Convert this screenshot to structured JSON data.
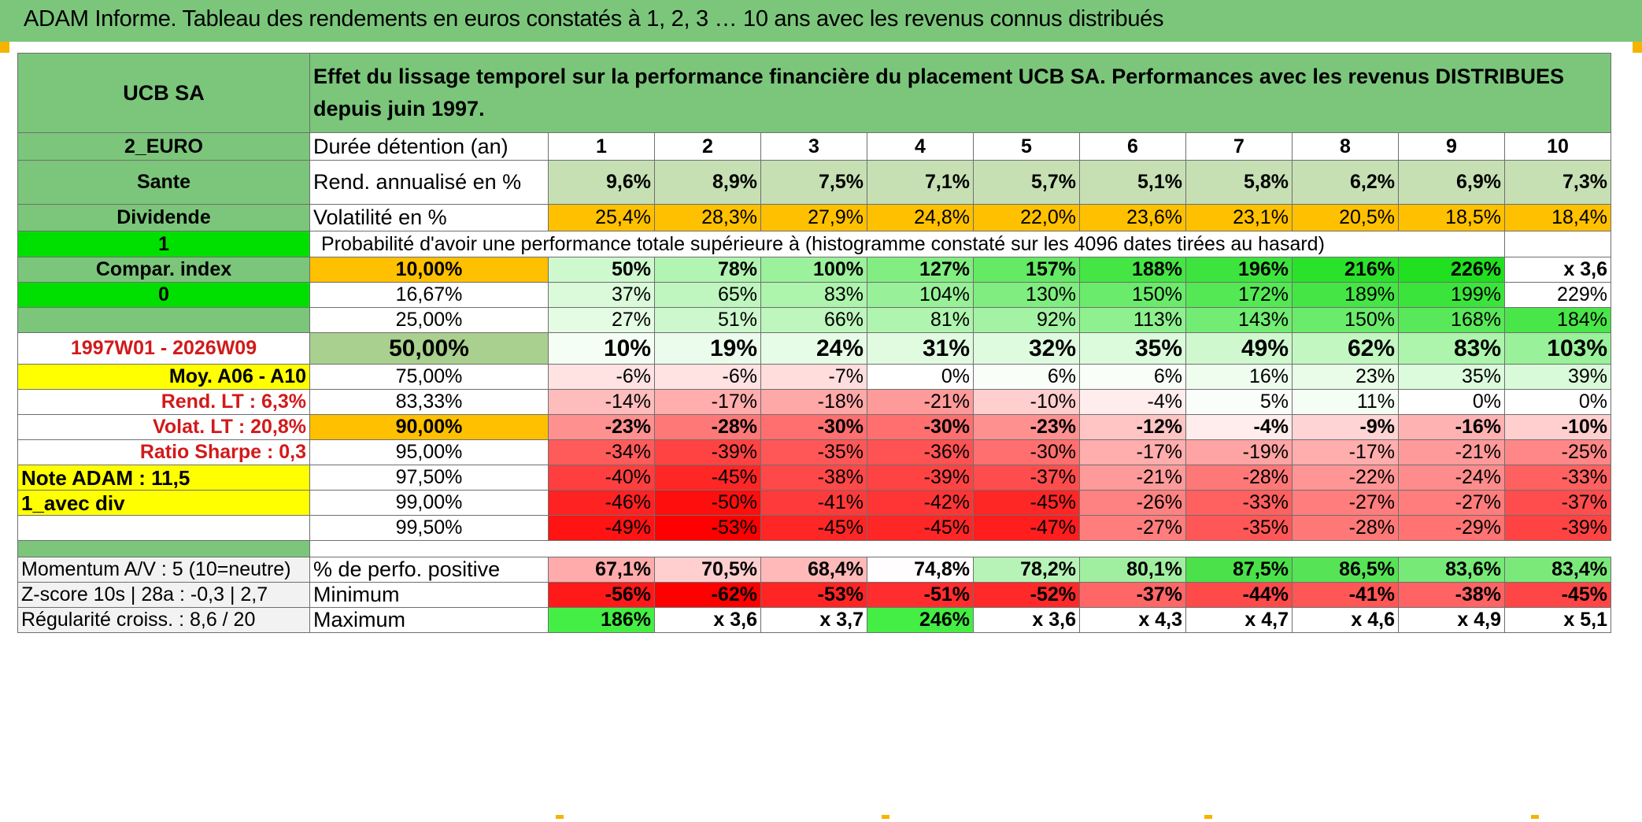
{
  "title": "ADAM Informe. Tableau des rendements en euros constatés à 1, 2, 3 … 10 ans avec les revenus connus distribués",
  "colors": {
    "header_green": "#7bc67b",
    "orange": "#ffc000",
    "yellow": "#ffff00",
    "bright_green": "#00e000",
    "red": "#d21a1a"
  },
  "side": {
    "name": "UCB SA",
    "currency": "2_EURO",
    "sector": "Sante",
    "income": "Dividende",
    "code_1": "1",
    "compar_label": "Compar. index",
    "code_0": "0",
    "period": "1997W01 - 2026W09",
    "moy": "Moy. A06 - A10",
    "rend_lt": "Rend. LT :   6,3%",
    "volat_lt": "Volat. LT :   20,8%",
    "sharpe": "Ratio Sharpe :   0,3",
    "note": "Note ADAM : 11,5",
    "avec_div": "1_avec div",
    "momentum": "Momentum A/V : 5 (10=neutre)",
    "zscore": "Z-score 10s | 28a : -0,3 | 2,7",
    "regularite": "Régularité croiss. : 8,6 / 20"
  },
  "header": {
    "description": "Effet du lissage temporel sur la performance financière du placement UCB SA. Performances avec les revenus DISTRIBUES depuis juin 1997.",
    "duration_label": "Durée détention (an)",
    "years": [
      "1",
      "2",
      "3",
      "4",
      "5",
      "6",
      "7",
      "8",
      "9",
      "10"
    ]
  },
  "rendement": {
    "label": "Rend. annualisé en %",
    "values": [
      "9,6%",
      "8,9%",
      "7,5%",
      "7,1%",
      "5,7%",
      "5,1%",
      "5,8%",
      "6,2%",
      "6,9%",
      "7,3%"
    ]
  },
  "volatilite": {
    "label": "Volatilité en %",
    "values": [
      "25,4%",
      "28,3%",
      "27,9%",
      "24,8%",
      "22,0%",
      "23,6%",
      "23,1%",
      "20,5%",
      "18,5%",
      "18,4%"
    ]
  },
  "probability_title": "Probabilité d'avoir une performance totale supérieure à (histogramme constaté sur les 4096 dates tirées au hasard)",
  "prob_rows": [
    {
      "label": "10,00%",
      "values": [
        "50%",
        "78%",
        "100%",
        "127%",
        "157%",
        "188%",
        "196%",
        "216%",
        "226%",
        "x 3,6"
      ]
    },
    {
      "label": "16,67%",
      "values": [
        "37%",
        "65%",
        "83%",
        "104%",
        "130%",
        "150%",
        "172%",
        "189%",
        "199%",
        "229%"
      ]
    },
    {
      "label": "25,00%",
      "values": [
        "27%",
        "51%",
        "66%",
        "81%",
        "92%",
        "113%",
        "143%",
        "150%",
        "168%",
        "184%"
      ]
    },
    {
      "label": "50,00%",
      "values": [
        "10%",
        "19%",
        "24%",
        "31%",
        "32%",
        "35%",
        "49%",
        "62%",
        "83%",
        "103%"
      ]
    },
    {
      "label": "75,00%",
      "values": [
        "-6%",
        "-6%",
        "-7%",
        "0%",
        "6%",
        "6%",
        "16%",
        "23%",
        "35%",
        "39%"
      ]
    },
    {
      "label": "83,33%",
      "values": [
        "-14%",
        "-17%",
        "-18%",
        "-21%",
        "-10%",
        "-4%",
        "5%",
        "11%",
        "0%",
        "0%"
      ]
    },
    {
      "label": "90,00%",
      "values": [
        "-23%",
        "-28%",
        "-30%",
        "-30%",
        "-23%",
        "-12%",
        "-4%",
        "-9%",
        "-16%",
        "-10%"
      ]
    },
    {
      "label": "95,00%",
      "values": [
        "-34%",
        "-39%",
        "-35%",
        "-36%",
        "-30%",
        "-17%",
        "-19%",
        "-17%",
        "-21%",
        "-25%"
      ]
    },
    {
      "label": "97,50%",
      "values": [
        "-40%",
        "-45%",
        "-38%",
        "-39%",
        "-37%",
        "-21%",
        "-28%",
        "-22%",
        "-24%",
        "-33%"
      ]
    },
    {
      "label": "99,00%",
      "values": [
        "-46%",
        "-50%",
        "-41%",
        "-42%",
        "-45%",
        "-26%",
        "-33%",
        "-27%",
        "-27%",
        "-37%"
      ]
    },
    {
      "label": "99,50%",
      "values": [
        "-49%",
        "-53%",
        "-45%",
        "-45%",
        "-47%",
        "-27%",
        "-35%",
        "-28%",
        "-29%",
        "-39%"
      ]
    }
  ],
  "stats": {
    "positive": {
      "label": "% de perfo. positive",
      "values": [
        "67,1%",
        "70,5%",
        "68,4%",
        "74,8%",
        "78,2%",
        "80,1%",
        "87,5%",
        "86,5%",
        "83,6%",
        "83,4%"
      ]
    },
    "minimum": {
      "label": "Minimum",
      "values": [
        "-56%",
        "-62%",
        "-53%",
        "-51%",
        "-52%",
        "-37%",
        "-44%",
        "-41%",
        "-38%",
        "-45%"
      ]
    },
    "maximum": {
      "label": "Maximum",
      "values": [
        "186%",
        "x 3,6",
        "x 3,7",
        "246%",
        "x 3,6",
        "x 4,3",
        "x 4,7",
        "x 4,6",
        "x 4,9",
        "x 5,1"
      ]
    }
  }
}
